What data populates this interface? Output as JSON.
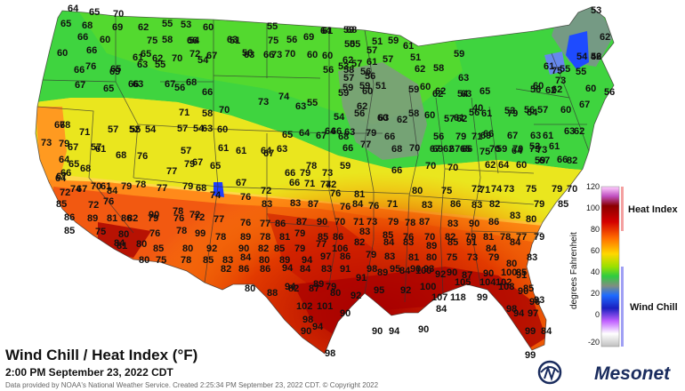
{
  "title": "Wind Chill / Heat Index (°F)",
  "subtitle": "2:00 PM September 23, 2022 CDT",
  "credit": "Data provided by NOAA's National Weather Service. Created 2:25:34 PM September 23, 2022 CDT. © Copyright 2022",
  "logo": "Mesonet",
  "legend": {
    "axis_label": "degrees Fahrenheit",
    "ticks": [
      "120",
      "100",
      "80",
      "60",
      "40",
      "20",
      "0",
      "-20"
    ],
    "heat_index_label": "Heat Index",
    "wind_chill_label": "Wind Chill",
    "colors": [
      "#ffd0ff",
      "#c050c0",
      "#8b0000",
      "#d40000",
      "#ff6a00",
      "#ffd700",
      "#9be000",
      "#2ecc40",
      "#7f8f7f",
      "#1e6bff",
      "#1a20c0",
      "#c060ff",
      "#ffffff",
      "#c0c0c0"
    ]
  },
  "readings": [
    "64",
    "65",
    "70",
    "62",
    "55",
    "53",
    "55",
    "61",
    "53",
    "65",
    "68",
    "69",
    "75",
    "66",
    "60",
    "51",
    "56",
    "57",
    "62",
    "66",
    "60",
    "65",
    "58",
    "54",
    "63",
    "56",
    "75",
    "73",
    "69",
    "64",
    "68",
    "55",
    "59",
    "50",
    "57",
    "59",
    "61",
    "51",
    "59",
    "60",
    "66",
    "65",
    "61",
    "62",
    "70",
    "72",
    "67",
    "63",
    "66",
    "70",
    "60",
    "60",
    "56",
    "62",
    "58",
    "56",
    "61",
    "53",
    "57",
    "51",
    "62",
    "58",
    "55",
    "54",
    "42",
    "56",
    "59",
    "51",
    "66",
    "76",
    "69",
    "63",
    "55",
    "56",
    "68",
    "54",
    "59",
    "60",
    "57",
    "56",
    "62",
    "60",
    "63",
    "59",
    "67",
    "65",
    "63",
    "66",
    "67",
    "66",
    "56",
    "62",
    "60",
    "62",
    "60",
    "55",
    "61",
    "56",
    "65",
    "54",
    "63",
    "40",
    "53",
    "57",
    "56",
    "60",
    "75",
    "73",
    "67",
    "58",
    "70",
    "71",
    "73",
    "74",
    "63",
    "55",
    "54",
    "56",
    "59",
    "62",
    "63",
    "58",
    "62",
    "56",
    "57",
    "62",
    "61",
    "79",
    "64",
    "66",
    "67",
    "61",
    "52",
    "54",
    "54",
    "60",
    "64",
    "63",
    "60",
    "62",
    "60",
    "61",
    "56",
    "79",
    "71",
    "66",
    "67",
    "63",
    "61",
    "63",
    "62",
    "78",
    "71",
    "57",
    "55",
    "57",
    "63",
    "65",
    "66",
    "77",
    "79",
    "66",
    "68",
    "69",
    "62",
    "65",
    "69",
    "59",
    "70",
    "79",
    "73",
    "73",
    "79",
    "57",
    "57",
    "61",
    "64",
    "63",
    "64",
    "67",
    "66",
    "68",
    "70",
    "67",
    "67",
    "66",
    "75",
    "70",
    "64",
    "52",
    "59",
    "61",
    "64",
    "66",
    "65",
    "68",
    "68",
    "76",
    "77",
    "79",
    "67",
    "65",
    "61",
    "67",
    "79",
    "73",
    "66",
    "78",
    "59",
    "66",
    "70",
    "70",
    "62",
    "64",
    "60",
    "67",
    "66",
    "82",
    "67",
    "64",
    "74",
    "70",
    "61",
    "84",
    "79",
    "78",
    "77",
    "79",
    "68",
    "67",
    "72",
    "66",
    "71",
    "74",
    "72",
    "81",
    "80",
    "75",
    "72",
    "71",
    "74",
    "73",
    "75",
    "79",
    "70",
    "72",
    "67",
    "72",
    "76",
    "86",
    "90",
    "78",
    "72",
    "74",
    "76",
    "83",
    "83",
    "87",
    "76",
    "76",
    "84",
    "76",
    "71",
    "83",
    "86",
    "83",
    "82",
    "79",
    "85",
    "85",
    "86",
    "89",
    "81",
    "82",
    "79",
    "76",
    "72",
    "77",
    "76",
    "77",
    "86",
    "87",
    "90",
    "70",
    "71",
    "73",
    "79",
    "78",
    "87",
    "83",
    "90",
    "86",
    "83",
    "80",
    "85",
    "75",
    "80",
    "76",
    "78",
    "99",
    "78",
    "89",
    "78",
    "81",
    "79",
    "85",
    "86",
    "83",
    "85",
    "76",
    "70",
    "82",
    "79",
    "81",
    "78",
    "77",
    "79",
    "84",
    "80",
    "85",
    "80",
    "92",
    "90",
    "82",
    "85",
    "79",
    "77",
    "106",
    "82",
    "84",
    "83",
    "89",
    "85",
    "91",
    "84",
    "84",
    "81",
    "80",
    "75",
    "78",
    "85",
    "83",
    "84",
    "80",
    "89",
    "94",
    "97",
    "86",
    "79",
    "83",
    "81",
    "80",
    "75",
    "73",
    "79",
    "80",
    "83",
    "82",
    "86",
    "86",
    "94",
    "84",
    "83",
    "91",
    "98",
    "95",
    "90",
    "93",
    "90",
    "87",
    "90",
    "100",
    "85",
    "80",
    "88",
    "82",
    "87",
    "79",
    "91",
    "89",
    "84",
    "100",
    "92",
    "105",
    "104",
    "102",
    "91",
    "85",
    "94",
    "89",
    "80",
    "92",
    "95",
    "92",
    "100",
    "107",
    "118",
    "99",
    "108",
    "90",
    "93",
    "98",
    "96",
    "94",
    "97",
    "102",
    "101",
    "98",
    "90",
    "94",
    "90",
    "99",
    "84"
  ],
  "offshore": [
    "90",
    "94",
    "90",
    "84",
    "98",
    "99"
  ]
}
